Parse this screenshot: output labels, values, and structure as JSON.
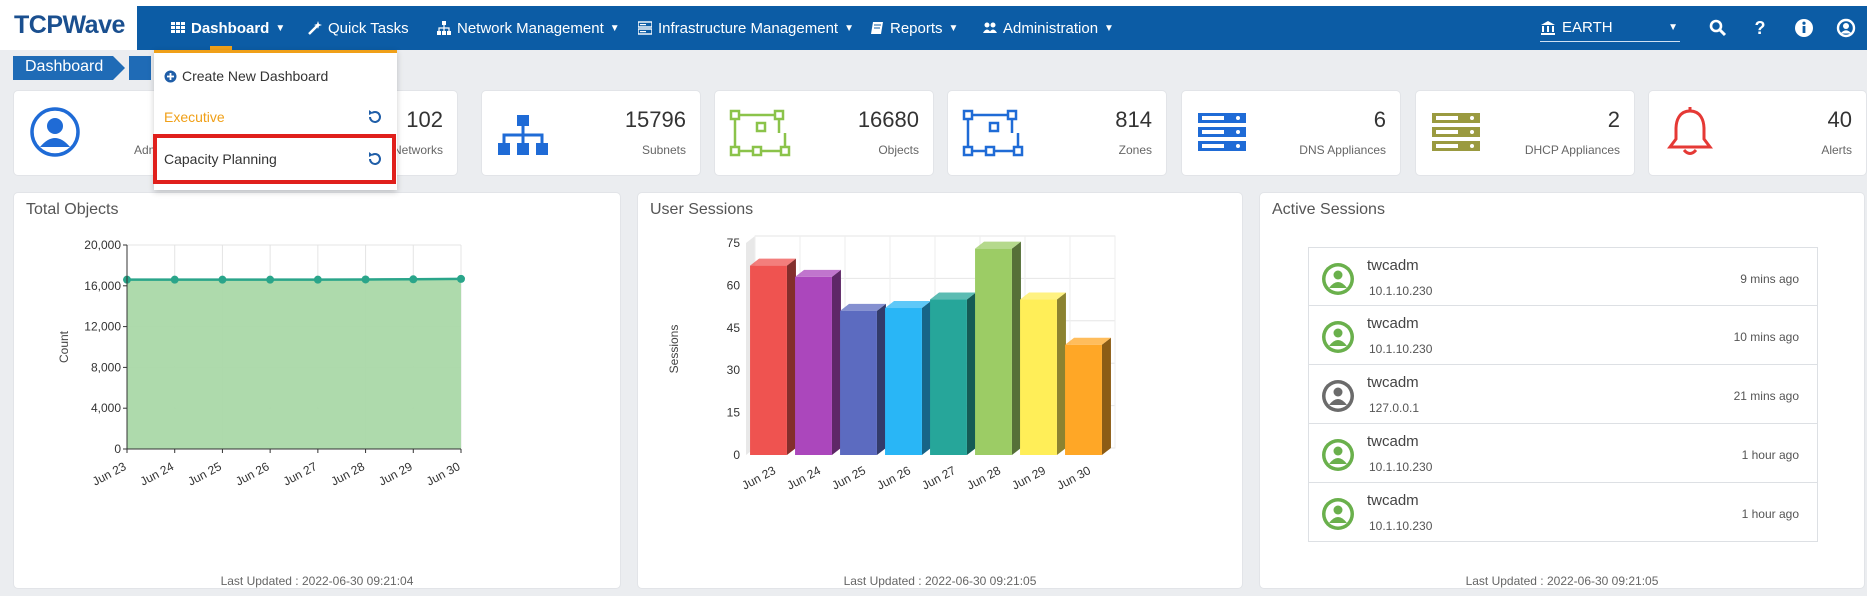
{
  "nav": {
    "logo": "TCPWave",
    "items": [
      {
        "label": "Dashboard"
      },
      {
        "label": "Quick Tasks"
      },
      {
        "label": "Network Management"
      },
      {
        "label": "Infrastructure Management"
      },
      {
        "label": "Reports"
      },
      {
        "label": "Administration"
      }
    ],
    "org_select": "EARTH",
    "accent": "#f0a018",
    "bar_color": "#0c5ca5"
  },
  "breadcrumb": {
    "root": "Dashboard"
  },
  "dropdown": {
    "create": "Create New Dashboard",
    "items": [
      {
        "label": "Executive",
        "color": "#f0a018"
      },
      {
        "label": "Capacity Planning",
        "color": "#333333"
      }
    ]
  },
  "stats": [
    {
      "label": "Admins",
      "value": "",
      "icon": "user-circle-icon"
    },
    {
      "label": "Networks",
      "value": "102",
      "icon": "network-icon"
    },
    {
      "label": "Subnets",
      "value": "15796",
      "icon": "sitemap-icon"
    },
    {
      "label": "Objects",
      "value": "16680",
      "icon": "objects-icon"
    },
    {
      "label": "Zones",
      "value": "814",
      "icon": "zones-icon"
    },
    {
      "label": "DNS Appliances",
      "value": "6",
      "icon": "server-icon"
    },
    {
      "label": "DHCP Appliances",
      "value": "2",
      "icon": "server-icon"
    },
    {
      "label": "Alerts",
      "value": "40",
      "icon": "bell-icon"
    }
  ],
  "panels": {
    "total_objects": {
      "title": "Total Objects",
      "footer": "Last Updated : 2022-06-30 09:21:04"
    },
    "user_sessions": {
      "title": "User Sessions",
      "footer": "Last Updated : 2022-06-30 09:21:05"
    },
    "active_sessions": {
      "title": "Active Sessions",
      "footer": "Last Updated : 2022-06-30 09:21:05"
    }
  },
  "chart_data": [
    {
      "type": "area",
      "title": "Total Objects",
      "categories": [
        "Jun 23",
        "Jun 24",
        "Jun 25",
        "Jun 26",
        "Jun 27",
        "Jun 28",
        "Jun 29",
        "Jun 30"
      ],
      "values": [
        16600,
        16600,
        16600,
        16600,
        16600,
        16620,
        16640,
        16680
      ],
      "ylabel": "Count",
      "ylim": [
        0,
        20000
      ],
      "yticks": [
        "0",
        "4,000",
        "8,000",
        "12,000",
        "16,000",
        "20,000"
      ],
      "grid": true,
      "color": "#2aa58a",
      "fill": "#aad8a8"
    },
    {
      "type": "bar",
      "title": "User Sessions",
      "categories": [
        "Jun 23",
        "Jun 24",
        "Jun 25",
        "Jun 26",
        "Jun 27",
        "Jun 28",
        "Jun 29",
        "Jun 30"
      ],
      "values": [
        67,
        63,
        51,
        52,
        55,
        73,
        55,
        39
      ],
      "colors": [
        "#ef5350",
        "#ab47bc",
        "#5c6bc0",
        "#29b6f6",
        "#26a69a",
        "#9ccc65",
        "#ffee58",
        "#ffa726"
      ],
      "ylabel": "Sessions",
      "ylim": [
        0,
        75
      ],
      "yticks": [
        "0",
        "15",
        "30",
        "45",
        "60",
        "75"
      ],
      "grid": true
    }
  ],
  "active_sessions": [
    {
      "user": "twcadm",
      "ip": "10.1.10.230",
      "ago": "9 mins ago",
      "avatar_color": "#6ab04c"
    },
    {
      "user": "twcadm",
      "ip": "10.1.10.230",
      "ago": "10 mins ago",
      "avatar_color": "#6ab04c"
    },
    {
      "user": "twcadm",
      "ip": "127.0.0.1",
      "ago": "21 mins ago",
      "avatar_color": "#6b6b6b"
    },
    {
      "user": "twcadm",
      "ip": "10.1.10.230",
      "ago": "1 hour ago",
      "avatar_color": "#6ab04c"
    },
    {
      "user": "twcadm",
      "ip": "10.1.10.230",
      "ago": "1 hour ago",
      "avatar_color": "#6ab04c"
    }
  ]
}
